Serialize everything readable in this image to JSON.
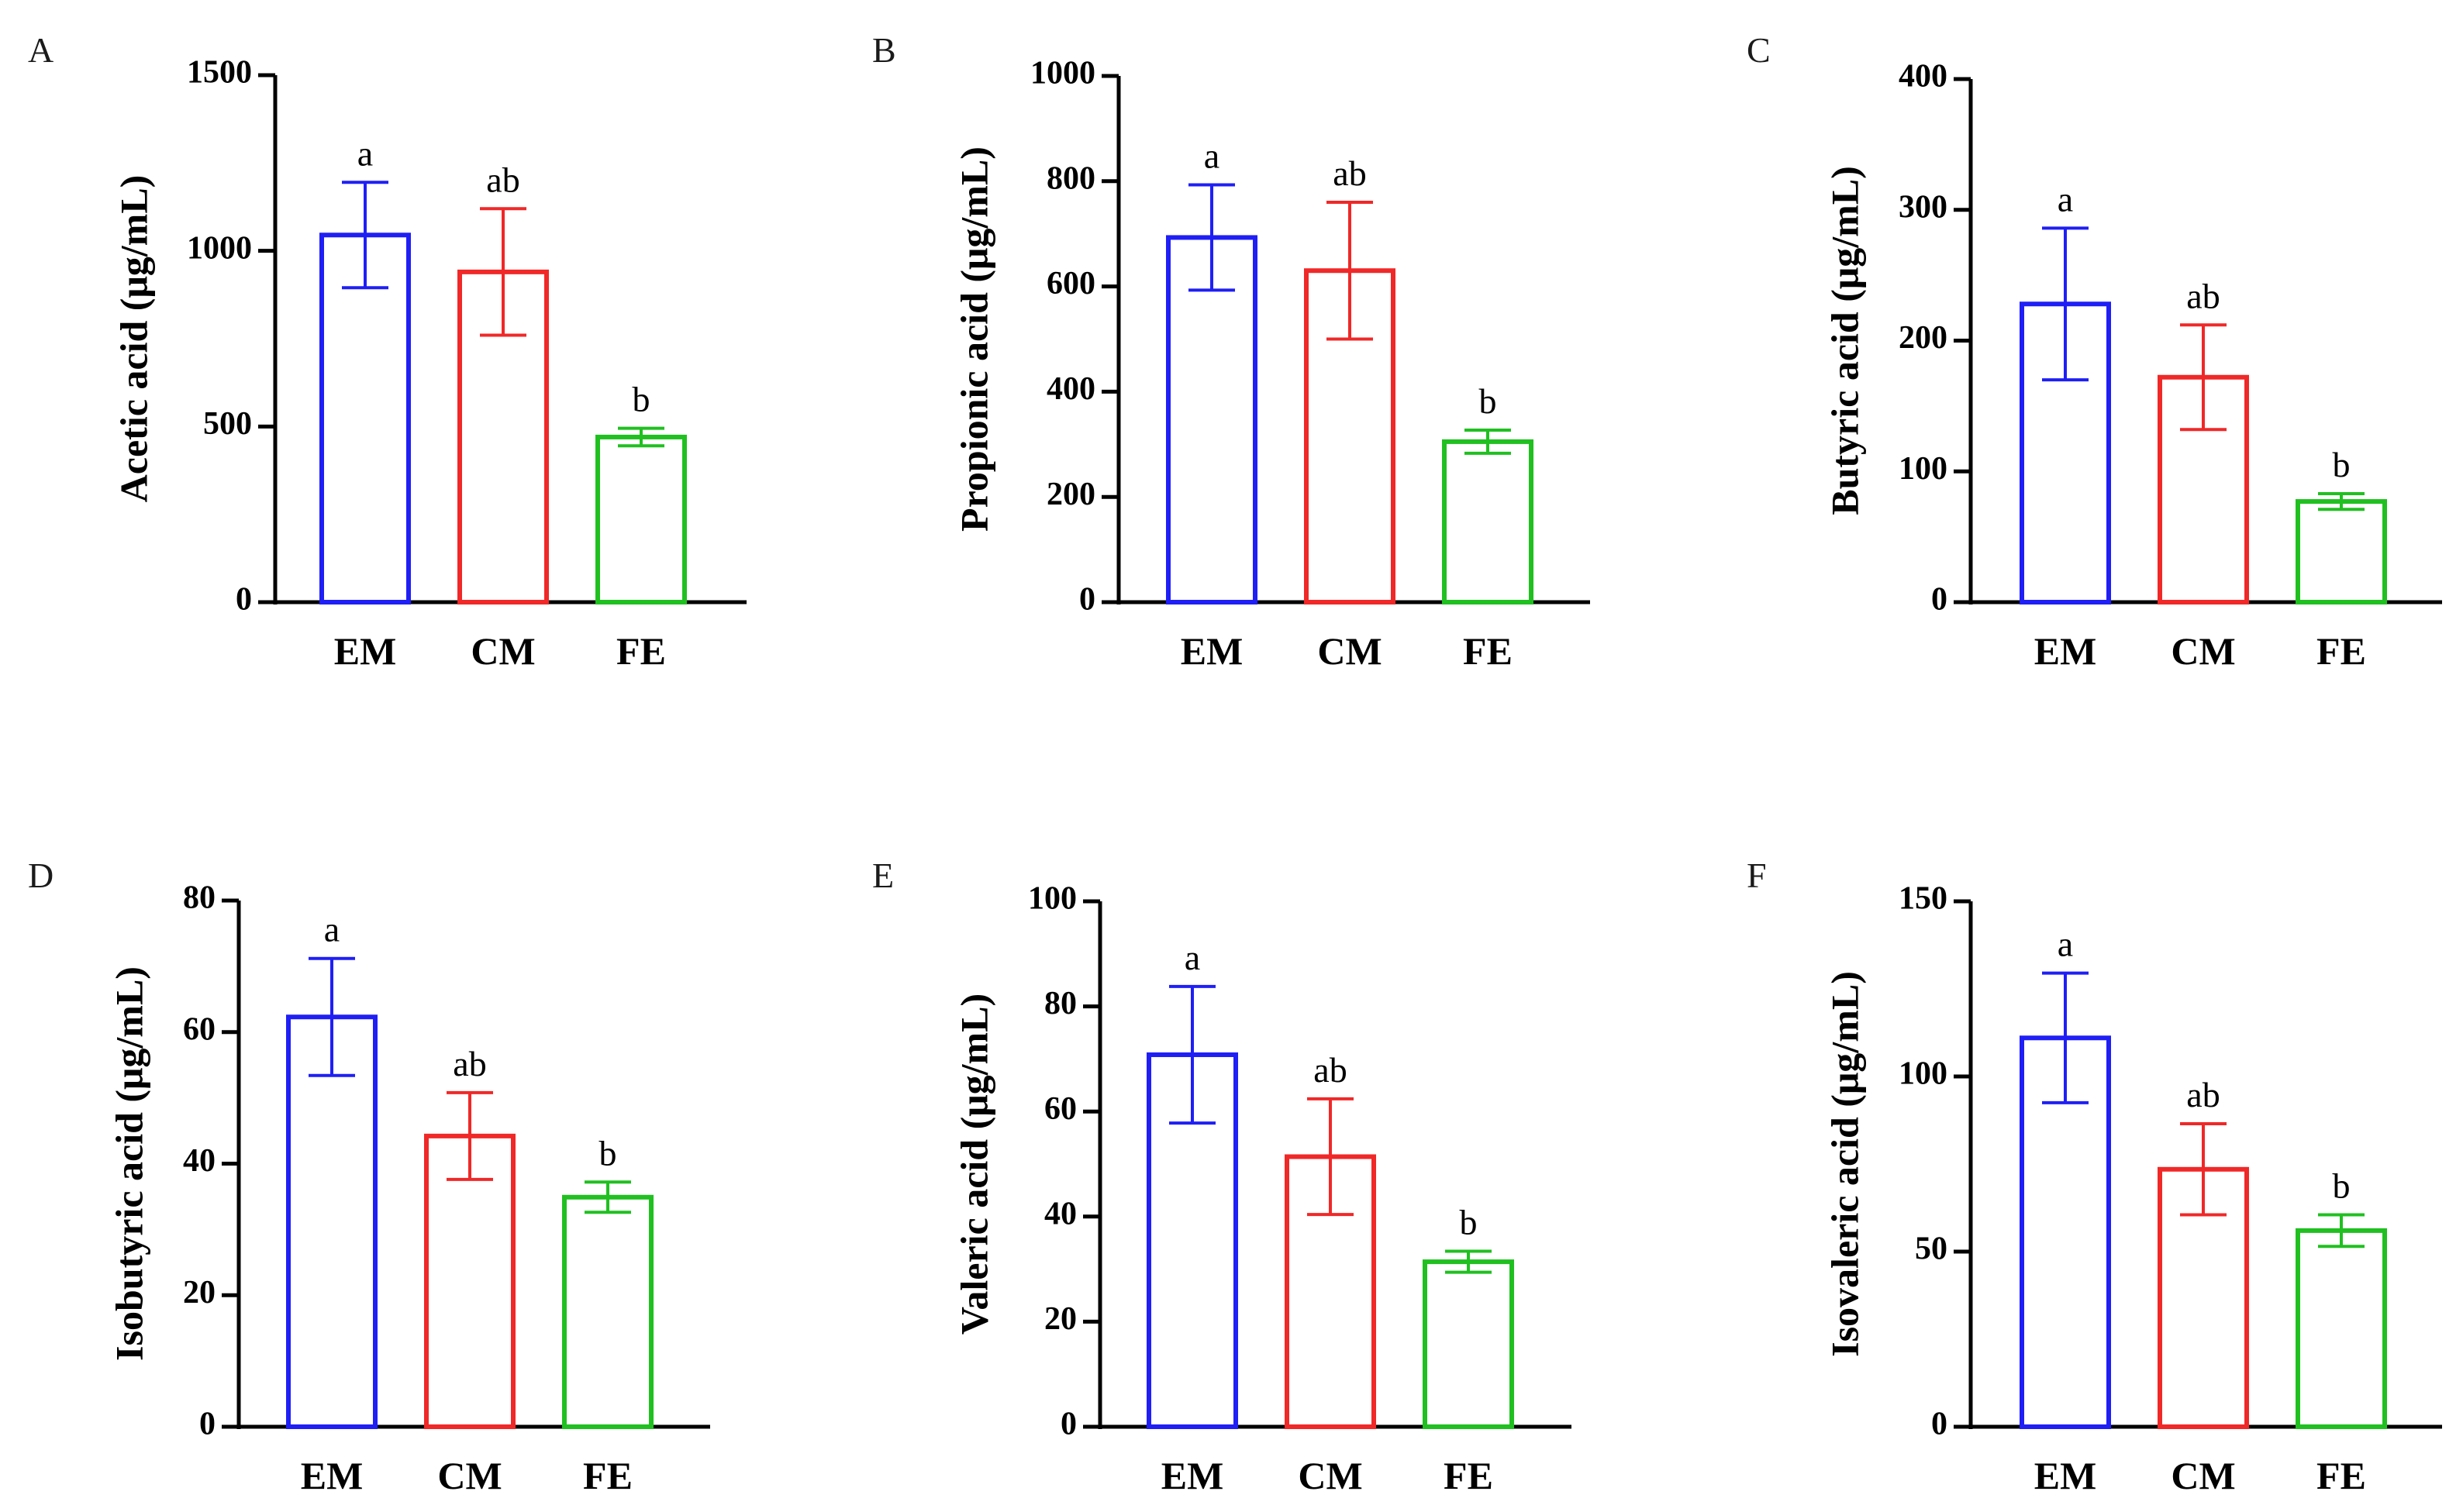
{
  "colors": {
    "EM": "#1f1ff5",
    "CM": "#f02828",
    "FE": "#20c020",
    "axis": "#000000",
    "text": "#000000"
  },
  "chart_data": [
    {
      "panel": "A",
      "type": "bar",
      "ylabel": "Acetic acid (μg/mL)",
      "categories": [
        "EM",
        "CM",
        "FE"
      ],
      "values": [
        1045,
        940,
        470
      ],
      "errors": [
        150,
        180,
        25
      ],
      "significance": [
        "a",
        "ab",
        "b"
      ],
      "ylim": [
        0,
        1500
      ],
      "yticks": [
        0,
        500,
        1000,
        1500
      ]
    },
    {
      "panel": "B",
      "type": "bar",
      "ylabel": "Propionic acid (μg/mL)",
      "categories": [
        "EM",
        "CM",
        "FE"
      ],
      "values": [
        693,
        630,
        305
      ],
      "errors": [
        100,
        130,
        22
      ],
      "significance": [
        "a",
        "ab",
        "b"
      ],
      "ylim": [
        0,
        1000
      ],
      "yticks": [
        0,
        200,
        400,
        600,
        800,
        1000
      ]
    },
    {
      "panel": "C",
      "type": "bar",
      "ylabel": "Butyric acid (μg/mL)",
      "categories": [
        "EM",
        "CM",
        "FE"
      ],
      "values": [
        228,
        172,
        77
      ],
      "errors": [
        58,
        40,
        6
      ],
      "significance": [
        "a",
        "ab",
        "b"
      ],
      "ylim": [
        0,
        400
      ],
      "yticks": [
        0,
        100,
        200,
        300,
        400
      ]
    },
    {
      "panel": "D",
      "type": "bar",
      "ylabel": "Isobutyric acid (μg/mL)",
      "categories": [
        "EM",
        "CM",
        "FE"
      ],
      "values": [
        62.3,
        44.2,
        34.9
      ],
      "errors": [
        8.9,
        6.6,
        2.3
      ],
      "significance": [
        "a",
        "ab",
        "b"
      ],
      "ylim": [
        0,
        80
      ],
      "yticks": [
        0,
        20,
        40,
        60,
        80
      ]
    },
    {
      "panel": "E",
      "type": "bar",
      "ylabel": "Valeric acid (μg/mL)",
      "categories": [
        "EM",
        "CM",
        "FE"
      ],
      "values": [
        70.8,
        51.4,
        31.4
      ],
      "errors": [
        13.0,
        11.0,
        2.0
      ],
      "significance": [
        "a",
        "ab",
        "b"
      ],
      "ylim": [
        0,
        100
      ],
      "yticks": [
        0,
        20,
        40,
        60,
        80,
        100
      ]
    },
    {
      "panel": "F",
      "type": "bar",
      "ylabel": "Isovaleric acid (μg/mL)",
      "categories": [
        "EM",
        "CM",
        "FE"
      ],
      "values": [
        111,
        73.5,
        56
      ],
      "errors": [
        18.5,
        13.0,
        4.5
      ],
      "significance": [
        "a",
        "ab",
        "b"
      ],
      "ylim": [
        0,
        150
      ],
      "yticks": [
        0,
        50,
        100,
        150
      ]
    }
  ]
}
